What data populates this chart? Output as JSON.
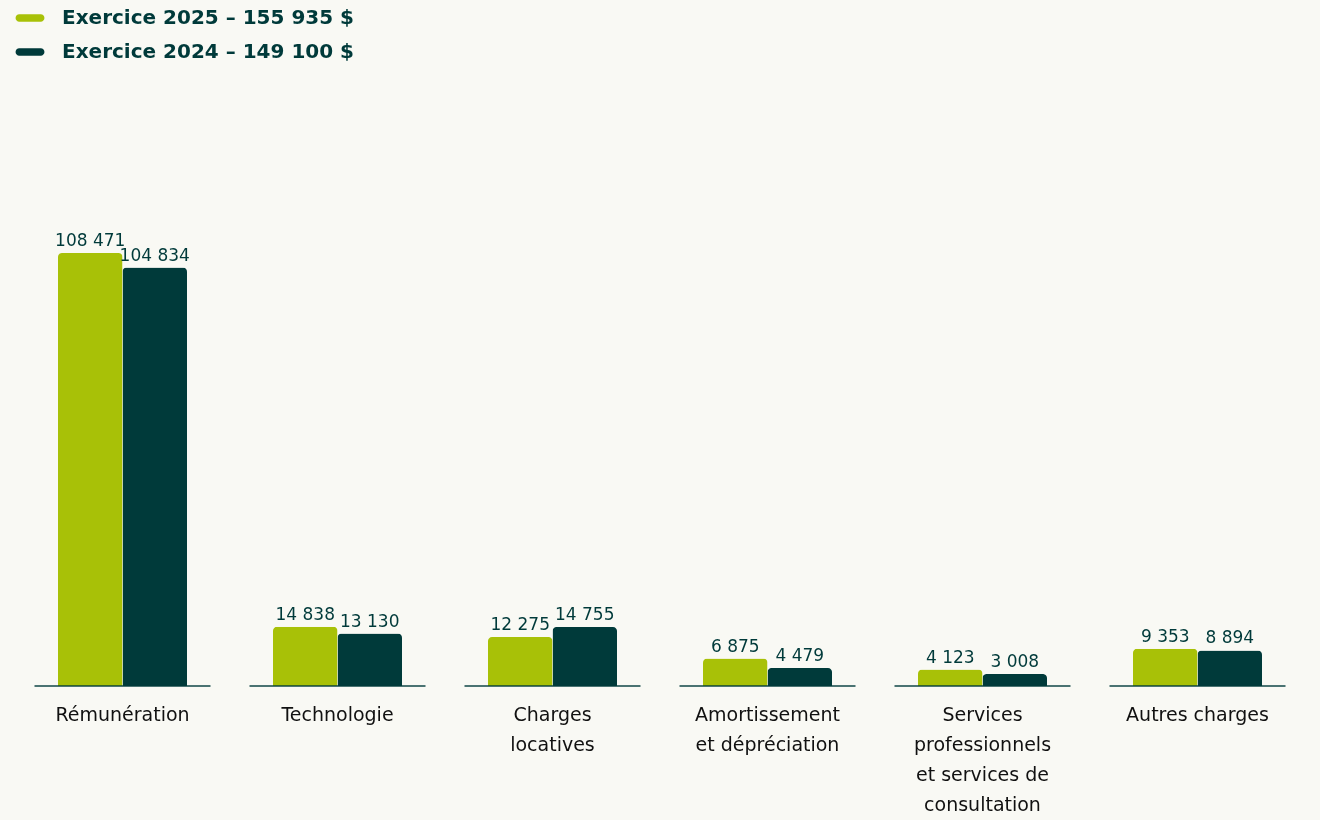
{
  "chart_data": {
    "type": "bar",
    "categories": [
      "Rémunération",
      "Technologie",
      "Charges locatives",
      "Amortissement et dépréciation",
      "Services professionnels et services de consultation",
      "Autres charges"
    ],
    "series": [
      {
        "name": "Exercice 2025 – 155 935 $",
        "color": "#a8c107",
        "values": [
          108471,
          14838,
          12275,
          6875,
          4123,
          9353
        ],
        "value_labels": [
          "108 471",
          "14 838",
          "12 275",
          "6 875",
          "4 123",
          "9 353"
        ]
      },
      {
        "name": "Exercice 2024 – 149 100 $",
        "color": "#003a3a",
        "values": [
          104834,
          13130,
          14755,
          4479,
          3008,
          8894
        ],
        "value_labels": [
          "104 834",
          "13 130",
          "14 755",
          "4 479",
          "3 008",
          "8 894"
        ]
      }
    ],
    "legend": "top left"
  }
}
